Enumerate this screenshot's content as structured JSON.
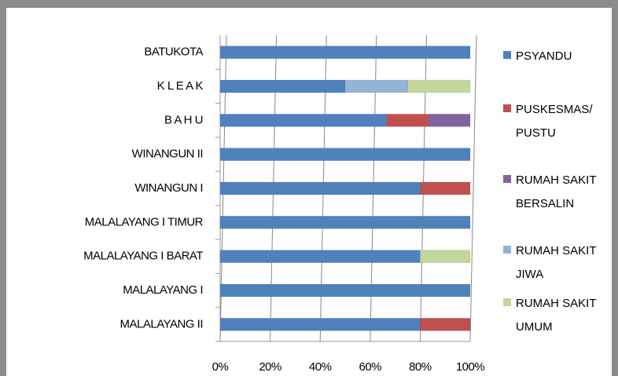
{
  "chart_data": {
    "type": "bar",
    "orientation": "horizontal",
    "stacked": "percent",
    "categories": [
      "MALALAYANG II",
      "MALALAYANG I",
      "MALALAYANG I BARAT",
      "MALALAYANG I TIMUR",
      "WINANGUN I",
      "WINANGUN II",
      "B A H U",
      "K L E A K",
      "BATUKOTA"
    ],
    "series": [
      {
        "name": "PSYANDU",
        "color": "#4f81bd",
        "values": [
          80,
          100,
          80,
          100,
          80,
          100,
          66.6,
          50,
          100
        ]
      },
      {
        "name": "PUSKESMAS/ PUSTU",
        "color": "#c0504d",
        "values": [
          20,
          0,
          0,
          0,
          20,
          0,
          16.7,
          0,
          0
        ]
      },
      {
        "name": "RUMAH SAKIT BERSALIN",
        "color": "#8064a2",
        "values": [
          0,
          0,
          0,
          0,
          0,
          0,
          16.7,
          0,
          0
        ]
      },
      {
        "name": "RUMAH SAKIT JIWA",
        "color": "#95b3d7",
        "values": [
          0,
          0,
          0,
          0,
          0,
          0,
          0,
          25,
          0
        ]
      },
      {
        "name": "RUMAH SAKIT UMUM",
        "color": "#c3d69b",
        "values": [
          0,
          0,
          20,
          0,
          0,
          0,
          0,
          25,
          0
        ]
      }
    ],
    "xlim": [
      0,
      100
    ],
    "xticks": [
      {
        "value": 0,
        "label": "0%"
      },
      {
        "value": 20,
        "label": "20%"
      },
      {
        "value": 40,
        "label": "40%"
      },
      {
        "value": 60,
        "label": "60%"
      },
      {
        "value": 80,
        "label": "80%"
      },
      {
        "value": 100,
        "label": "100%"
      }
    ],
    "grid": true,
    "legend": "right"
  }
}
